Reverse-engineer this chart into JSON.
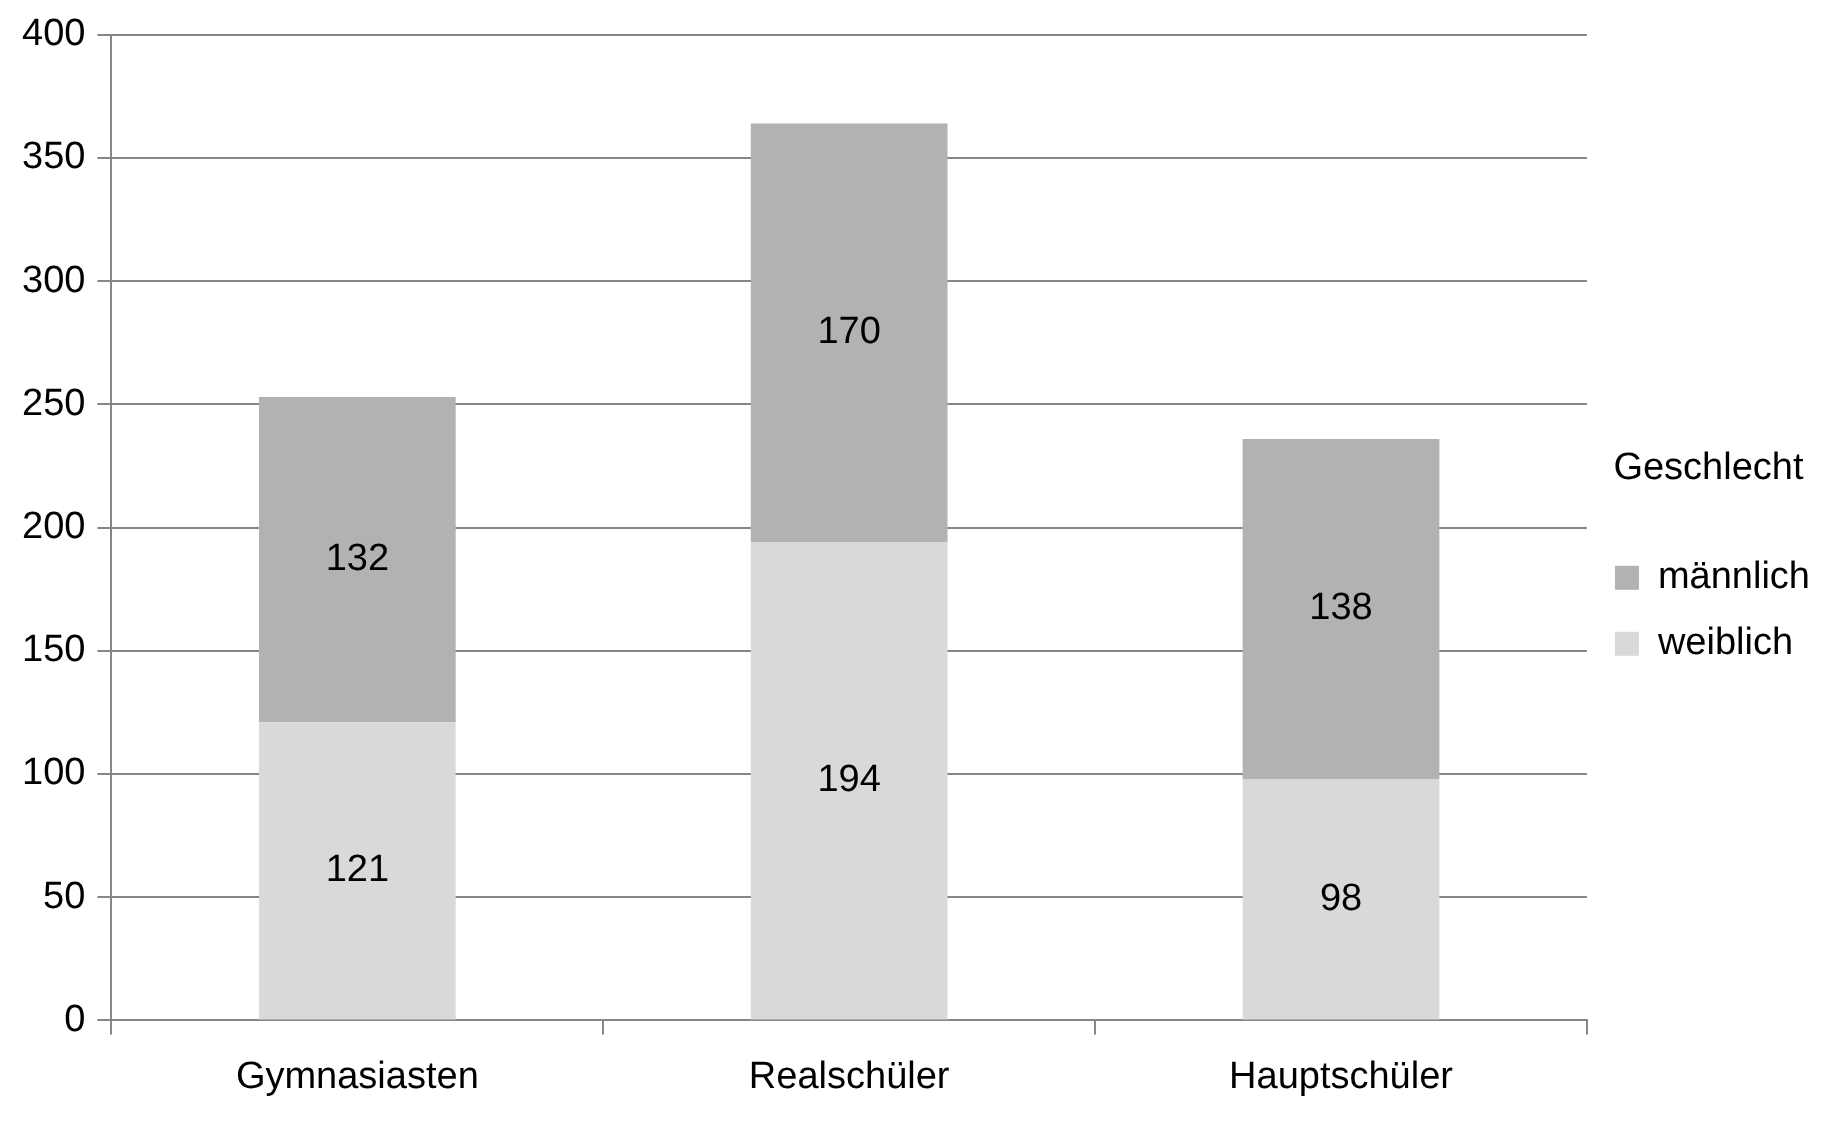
{
  "chart_data": {
    "type": "bar",
    "stacked": true,
    "categories": [
      "Gymnasiasten",
      "Realschüler",
      "Hauptschüler"
    ],
    "series": [
      {
        "name": "weiblich",
        "color": "#d9d9d9",
        "values": [
          121,
          194,
          98
        ]
      },
      {
        "name": "männlich",
        "color": "#b2b2b2",
        "values": [
          132,
          170,
          138
        ]
      }
    ],
    "ylim": [
      0,
      400
    ],
    "yticks": [
      0,
      50,
      100,
      150,
      200,
      250,
      300,
      350,
      400
    ],
    "grid": "y",
    "legend": "right",
    "legend_title": "Geschlecht",
    "data_labels": true
  }
}
